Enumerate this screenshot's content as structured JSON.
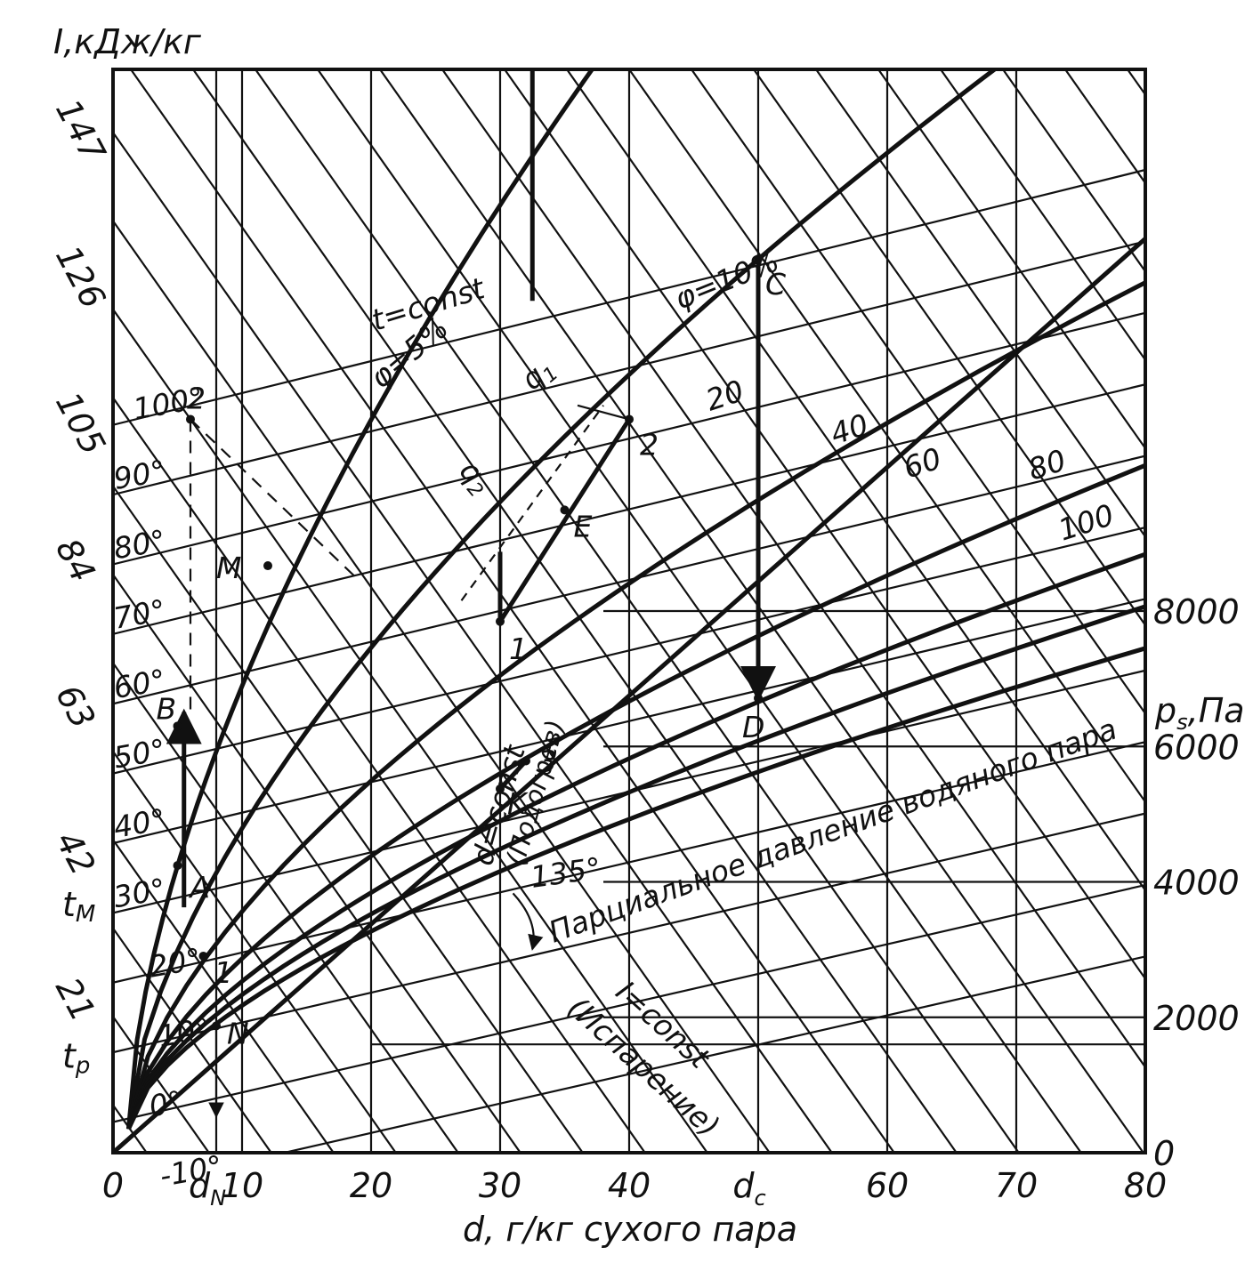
{
  "chart_data": {
    "type": "line",
    "title": "",
    "xlabel": "d, г/кг сухого пара",
    "ylabel": "I,кДж/кг",
    "right_axis_label": "p",
    "right_axis_label_sub": "s",
    "right_axis_label_unit": ",Па",
    "xlim": [
      0,
      80
    ],
    "ylim": [
      -4.2,
      151.2
    ],
    "right_lim": [
      0,
      16000
    ],
    "x_ticks": [
      "0",
      "10",
      "20",
      "30",
      "40",
      "60",
      "70",
      "80"
    ],
    "x_tick_values": [
      0,
      10,
      20,
      30,
      40,
      60,
      70,
      80
    ],
    "x_special_ticks": [
      {
        "label": "d",
        "sub": "N",
        "x": 8
      },
      {
        "label": "d",
        "sub": "c",
        "x": 50
      }
    ],
    "y_ticks": [
      "21",
      "42",
      "63",
      "84",
      "105",
      "126",
      "147"
    ],
    "y_tick_values": [
      21,
      42,
      63,
      84,
      105,
      126,
      147
    ],
    "y_special_ticks": [
      {
        "label": "t",
        "sub": "M",
        "y": 31.5
      },
      {
        "label": "t",
        "sub": "p",
        "y": 9.8
      }
    ],
    "right_ticks": [
      "0",
      "2000",
      "4000",
      "6000",
      "8000"
    ],
    "right_tick_values": [
      0,
      2000,
      4000,
      6000,
      8000
    ],
    "isotherms": {
      "labels": [
        "-10°",
        "0°",
        "10°",
        "20°",
        "30°",
        "40°",
        "50°",
        "60°",
        "70°",
        "80°",
        "90°",
        "100°"
      ],
      "temperatures": [
        -10,
        0,
        10,
        20,
        30,
        40,
        50,
        60,
        70,
        80,
        90,
        100
      ]
    },
    "phi_curves": {
      "labels": [
        "φ=5%",
        "φ=10%",
        "20",
        "40",
        "60",
        "80",
        "100"
      ],
      "values": [
        5,
        10,
        20,
        40,
        60,
        80,
        100
      ]
    },
    "annotations": {
      "t_const": "t=const",
      "d_const": "d=const",
      "heating": "(Подогрев)",
      "i_const": "I=const",
      "evaporation": "(Испарение)",
      "angle": "135°",
      "partial_pressure": "Парциальное давление водяного пара",
      "q1": "q",
      "q1_sub": "1",
      "q2": "q",
      "q2_sub": "2"
    },
    "points": [
      {
        "name": "C",
        "x": 50,
        "y": 124
      },
      {
        "name": "D",
        "x": 50,
        "y": 61
      },
      {
        "name": "1",
        "x": 30,
        "y": 72
      },
      {
        "name": "2",
        "x": 40,
        "y": 101
      },
      {
        "name": "E",
        "x": 35,
        "y": 88
      },
      {
        "name": "3",
        "x": 32,
        "y": 52
      },
      {
        "name": "K",
        "x": 30,
        "y": 48
      },
      {
        "name": "M",
        "x": 12,
        "y": 80
      },
      {
        "name": "A",
        "x": 5,
        "y": 37
      },
      {
        "name": "B",
        "x": 5,
        "y": 57
      },
      {
        "name": "N",
        "x": 8,
        "y": 14
      },
      {
        "name": "1",
        "x": 7,
        "y": 24
      },
      {
        "name": "2",
        "x": 6,
        "y": 101
      }
    ]
  }
}
